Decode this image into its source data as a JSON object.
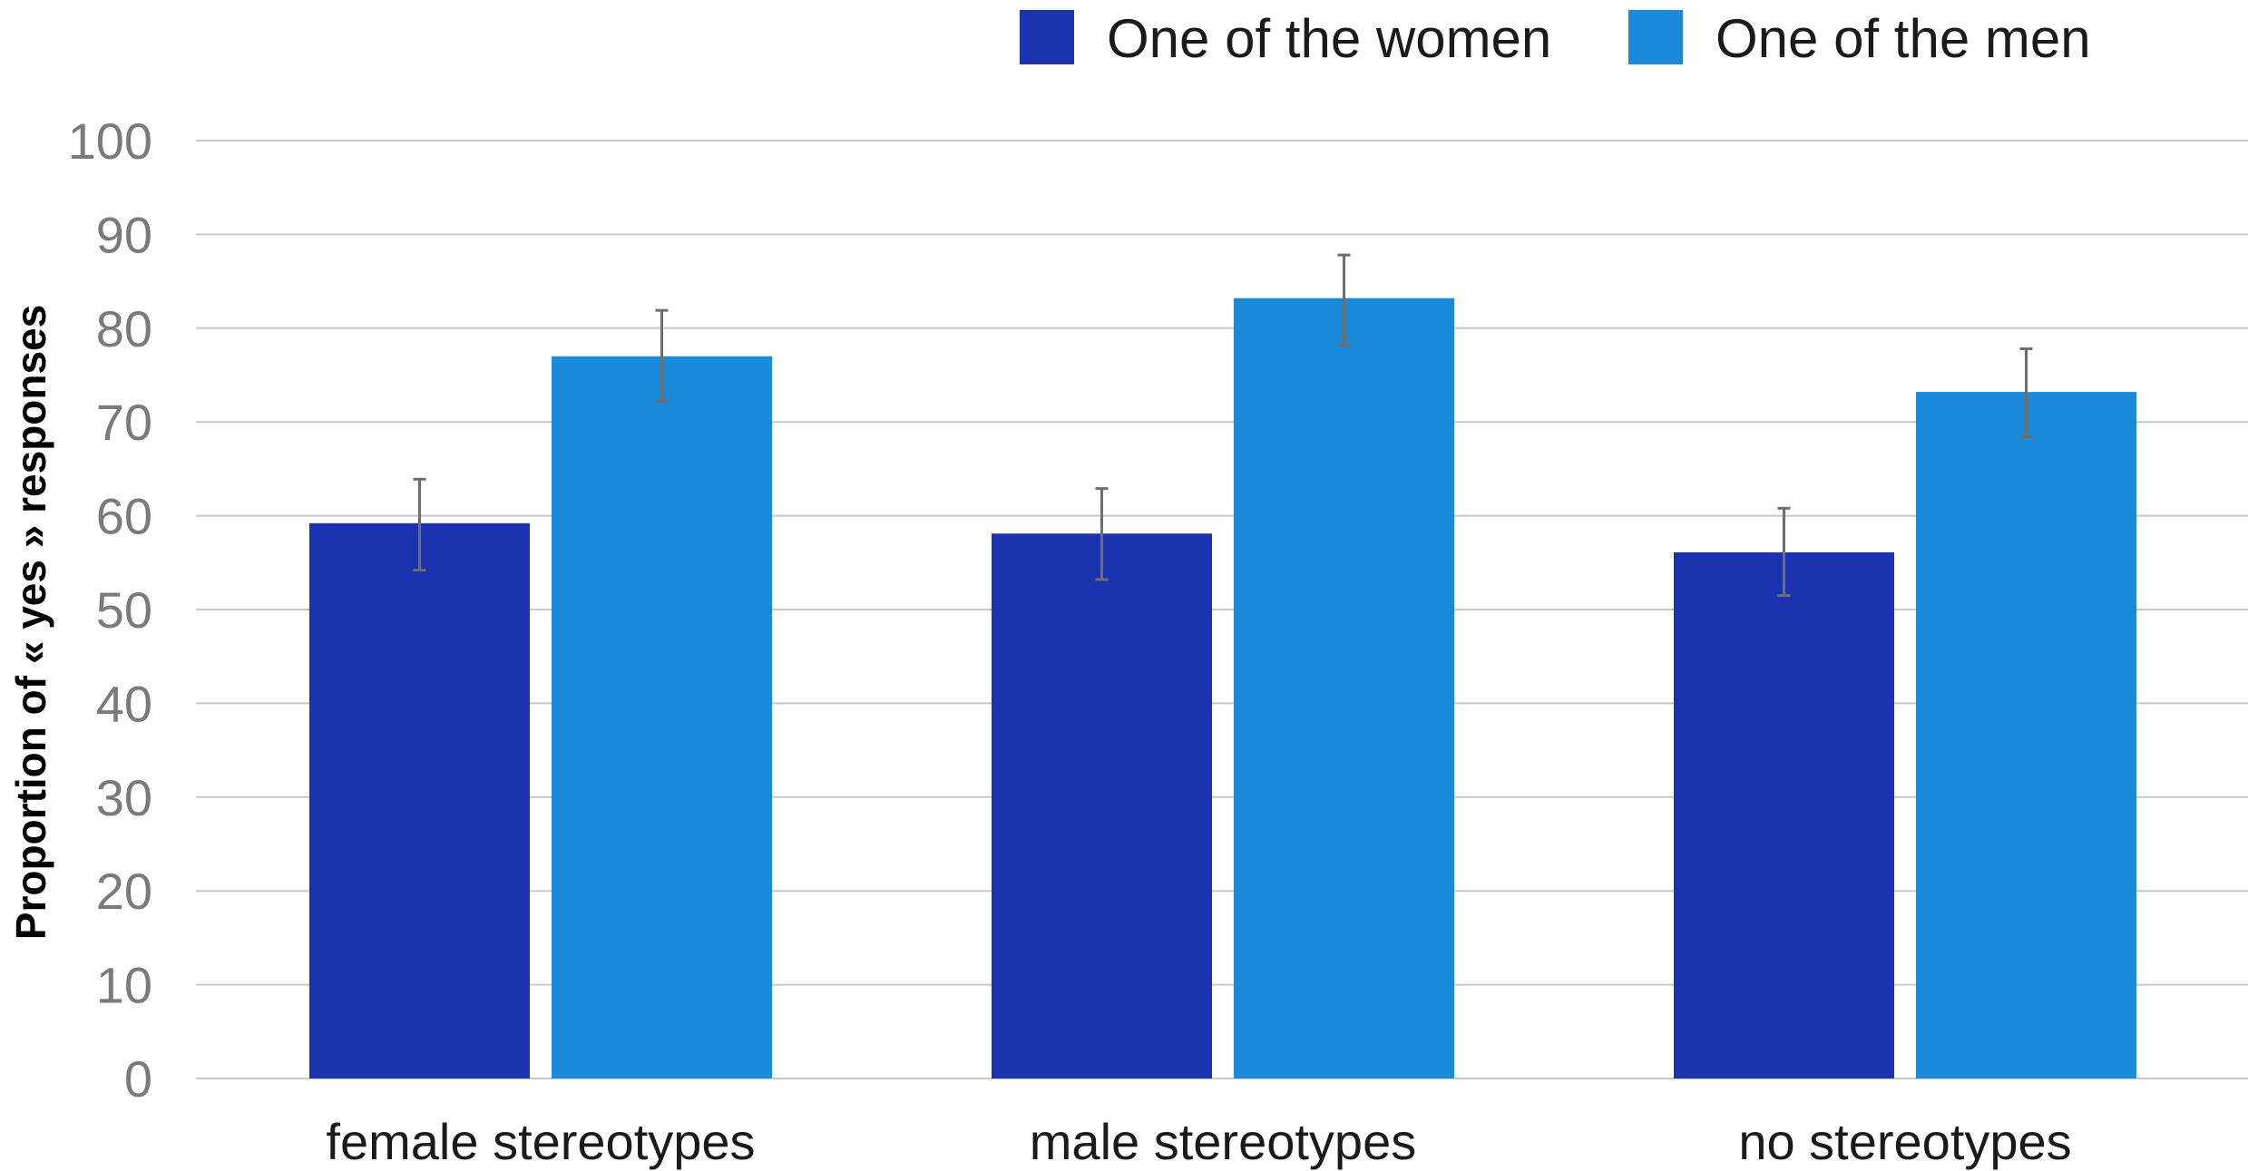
{
  "chart_data": {
    "type": "bar",
    "categories": [
      "female stereotypes",
      "male stereotypes",
      "no stereotypes"
    ],
    "series": [
      {
        "name": "One of the women",
        "color": "#1c33b0",
        "values": [
          59.2,
          58.1,
          56.1
        ],
        "error_low": [
          54.2,
          53.2,
          51.5
        ],
        "error_high": [
          63.9,
          62.9,
          60.8
        ]
      },
      {
        "name": "One of the men",
        "color": "#1b8adb",
        "values": [
          77.0,
          83.2,
          73.2
        ],
        "error_low": [
          72.2,
          78.2,
          68.4
        ],
        "error_high": [
          81.9,
          87.8,
          77.8
        ]
      }
    ],
    "xlabel": "",
    "ylabel": "Proportion of « yes » responses",
    "ylim": [
      0,
      100
    ],
    "yticks": [
      0,
      10,
      20,
      30,
      40,
      50,
      60,
      70,
      80,
      90,
      100
    ],
    "grid": "horizontal",
    "legend_position": "top"
  }
}
